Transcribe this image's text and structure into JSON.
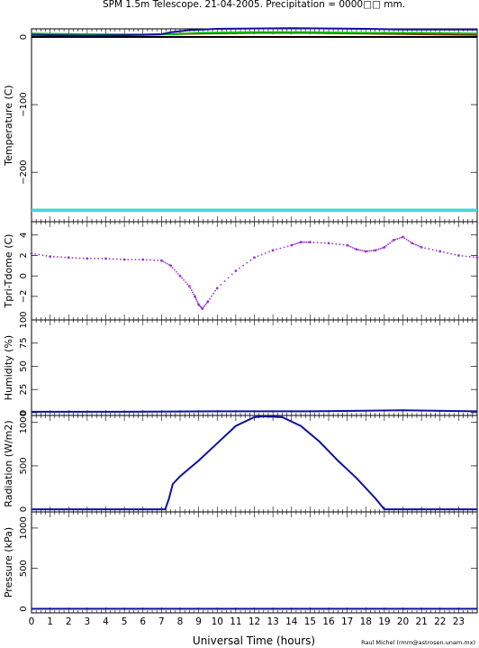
{
  "title": "SPM 1.5m Telescope. 21-04-2005. Precipitation = 0000□□ mm.",
  "xlabel": "Universal Time (hours)",
  "credit": "Raul Michel (rmm@astrosen.unam.mx)",
  "chart_data": [
    {
      "type": "line",
      "ylabel": "Temperature (C)",
      "xlim": [
        0,
        24
      ],
      "ylim": [
        -273,
        12
      ],
      "yticks": [
        0,
        -100,
        -200
      ],
      "series": [
        {
          "color": "#000000",
          "x": [
            0,
            24
          ],
          "y": [
            0,
            0
          ]
        },
        {
          "color": "#8b2500",
          "x": [
            0,
            3,
            6,
            7.5,
            9,
            12,
            15,
            18,
            21,
            24
          ],
          "y": [
            4,
            3.5,
            3.5,
            4,
            5,
            6,
            6,
            5,
            4,
            3
          ]
        },
        {
          "color": "#00bb00",
          "x": [
            0,
            3,
            6,
            7.5,
            9,
            12,
            15,
            18,
            21,
            24
          ],
          "y": [
            5,
            4,
            3.5,
            4,
            6,
            7,
            7,
            6,
            6,
            5
          ]
        },
        {
          "color": "#1010a0",
          "x": [
            0,
            3,
            6,
            7,
            7.5,
            8.5,
            10,
            12,
            14,
            16,
            18,
            20,
            22,
            24
          ],
          "y": [
            3,
            2,
            3,
            4,
            7,
            10,
            12,
            12.5,
            13,
            12.5,
            12,
            11,
            11,
            11
          ]
        },
        {
          "color": "#40d8d8",
          "x": [
            0,
            24
          ],
          "y": [
            -256,
            -256
          ]
        }
      ]
    },
    {
      "type": "scatter",
      "ylabel": "Tpri-Tdome (C)",
      "xlim": [
        0,
        24
      ],
      "ylim": [
        -4.3,
        5.3
      ],
      "yticks": [
        4,
        2,
        0,
        -2
      ],
      "series": [
        {
          "color": "#9a30d0",
          "x": [
            0,
            1,
            2,
            3,
            4,
            5,
            6,
            7,
            7.5,
            8,
            8.5,
            8.8,
            9,
            9.2,
            9.5,
            10,
            11,
            12,
            13,
            14,
            14.5,
            15,
            16,
            17,
            17.5,
            18,
            18.5,
            19,
            19.5,
            20,
            20.5,
            21,
            22,
            23,
            24
          ],
          "y": [
            2.2,
            1.9,
            1.8,
            1.7,
            1.7,
            1.6,
            1.6,
            1.5,
            1.0,
            0.0,
            -1.0,
            -2.0,
            -2.8,
            -3.2,
            -2.5,
            -1.2,
            0.5,
            1.8,
            2.5,
            3.0,
            3.3,
            3.3,
            3.2,
            3.0,
            2.6,
            2.4,
            2.5,
            2.8,
            3.5,
            3.8,
            3.2,
            2.8,
            2.4,
            2.0,
            1.8
          ]
        }
      ]
    },
    {
      "type": "line",
      "ylabel": "Humidity (%)",
      "xlim": [
        0,
        24
      ],
      "ylim": [
        -3,
        100
      ],
      "yticks": [
        100,
        75,
        50,
        25,
        0
      ],
      "series": [
        {
          "color": "#1010a0",
          "x": [
            0,
            5,
            10,
            15,
            20,
            24
          ],
          "y": [
            1,
            1,
            1.5,
            1.5,
            2.5,
            1.5
          ]
        }
      ]
    },
    {
      "type": "line",
      "ylabel": "Radiation (W/m2)",
      "xlim": [
        0,
        24
      ],
      "ylim": [
        -30,
        1080
      ],
      "yticks": [
        1000,
        500,
        0
      ],
      "series": [
        {
          "color": "#1010a0",
          "x": [
            0,
            7.2,
            7.4,
            7.6,
            8,
            9,
            10,
            11,
            11.5,
            12,
            12.5,
            13.5,
            14.5,
            15.5,
            16.5,
            17.5,
            18.5,
            19,
            24
          ],
          "y": [
            0,
            0,
            120,
            290,
            380,
            560,
            760,
            960,
            1010,
            1060,
            1070,
            1060,
            960,
            780,
            560,
            360,
            130,
            0,
            0
          ]
        }
      ]
    },
    {
      "type": "line",
      "ylabel": "Pressure (kPa)",
      "xlim": [
        0,
        24
      ],
      "ylim": [
        -50,
        1200
      ],
      "yticks": [
        1000,
        500,
        0
      ],
      "series": [
        {
          "color": "#1010a0",
          "x": [
            0,
            24
          ],
          "y": [
            0,
            0
          ]
        }
      ]
    }
  ],
  "xticks": [
    0,
    1,
    2,
    3,
    4,
    5,
    6,
    7,
    8,
    9,
    10,
    11,
    12,
    13,
    14,
    15,
    16,
    17,
    18,
    19,
    20,
    21,
    22,
    23
  ]
}
